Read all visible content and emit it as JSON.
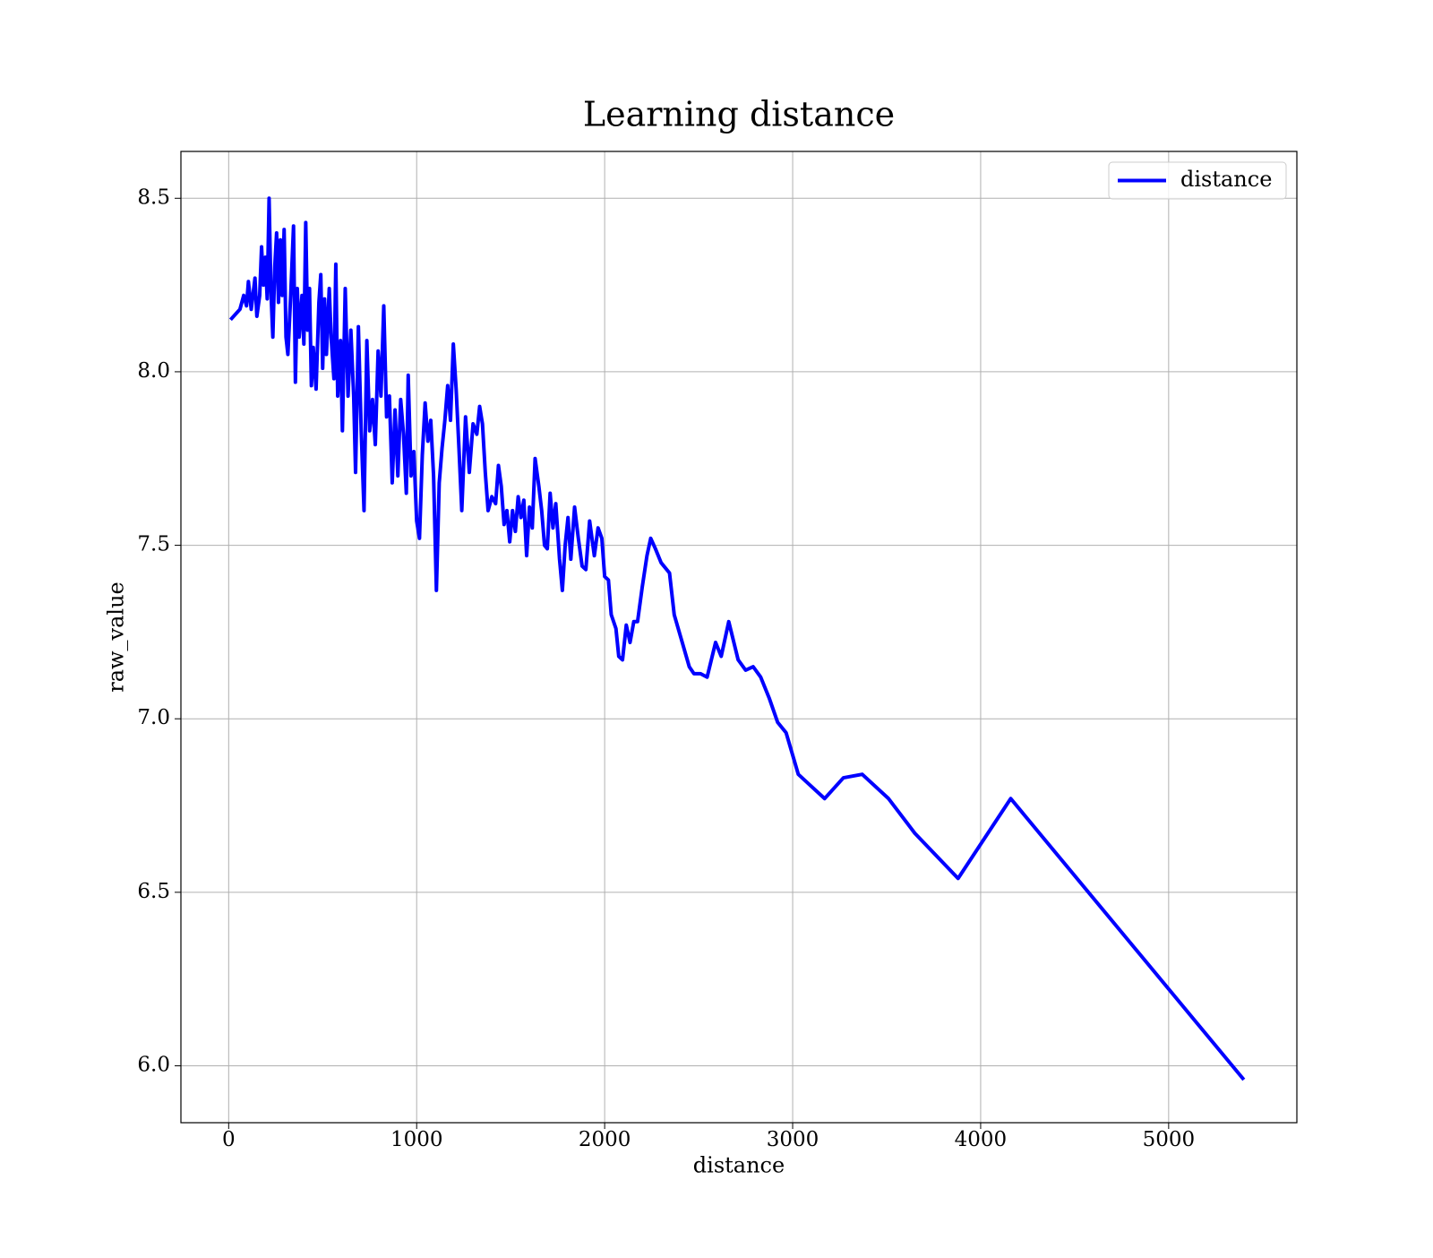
{
  "chart_data": {
    "type": "line",
    "title": "Learning distance",
    "xlabel": "distance",
    "ylabel": "raw_value",
    "x": [
      10,
      60,
      80,
      95,
      105,
      120,
      140,
      150,
      165,
      175,
      185,
      195,
      205,
      215,
      225,
      235,
      245,
      255,
      265,
      275,
      285,
      295,
      305,
      315,
      330,
      345,
      355,
      365,
      375,
      390,
      400,
      410,
      420,
      430,
      440,
      450,
      465,
      480,
      490,
      500,
      510,
      520,
      535,
      545,
      560,
      570,
      580,
      595,
      605,
      620,
      635,
      650,
      665,
      675,
      690,
      705,
      720,
      735,
      750,
      765,
      780,
      795,
      810,
      825,
      840,
      855,
      870,
      885,
      900,
      915,
      930,
      945,
      955,
      970,
      985,
      1000,
      1015,
      1030,
      1045,
      1060,
      1075,
      1090,
      1105,
      1120,
      1135,
      1150,
      1165,
      1180,
      1195,
      1210,
      1225,
      1240,
      1260,
      1280,
      1300,
      1320,
      1335,
      1350,
      1365,
      1380,
      1400,
      1420,
      1435,
      1450,
      1465,
      1480,
      1495,
      1510,
      1525,
      1540,
      1555,
      1570,
      1585,
      1600,
      1615,
      1630,
      1650,
      1665,
      1680,
      1695,
      1710,
      1725,
      1740,
      1760,
      1775,
      1790,
      1805,
      1820,
      1840,
      1860,
      1880,
      1900,
      1920,
      1945,
      1965,
      1985,
      2000,
      2020,
      2035,
      2060,
      2075,
      2095,
      2115,
      2135,
      2155,
      2175,
      2200,
      2225,
      2245,
      2270,
      2300,
      2345,
      2370,
      2450,
      2475,
      2510,
      2545,
      2590,
      2620,
      2660,
      2710,
      2750,
      2790,
      2830,
      2875,
      2920,
      2965,
      3030,
      3090,
      3170,
      3270,
      3370,
      3510,
      3650,
      3880,
      4160,
      5400
    ],
    "series": [
      {
        "name": "distance",
        "color": "#0000ff",
        "values": [
          8.15,
          8.18,
          8.22,
          8.19,
          8.26,
          8.18,
          8.27,
          8.16,
          8.22,
          8.36,
          8.25,
          8.33,
          8.21,
          8.5,
          8.23,
          8.1,
          8.3,
          8.4,
          8.2,
          8.38,
          8.22,
          8.41,
          8.1,
          8.05,
          8.22,
          8.42,
          7.97,
          8.24,
          8.1,
          8.22,
          8.08,
          8.43,
          8.12,
          8.24,
          7.96,
          8.07,
          7.95,
          8.2,
          8.28,
          8.01,
          8.21,
          8.05,
          8.24,
          8.1,
          7.98,
          8.31,
          7.93,
          8.09,
          7.83,
          8.24,
          7.93,
          8.12,
          7.93,
          7.71,
          8.13,
          7.83,
          7.6,
          8.09,
          7.83,
          7.92,
          7.79,
          8.06,
          7.93,
          8.19,
          7.87,
          7.93,
          7.68,
          7.89,
          7.7,
          7.92,
          7.82,
          7.65,
          7.99,
          7.7,
          7.77,
          7.57,
          7.52,
          7.76,
          7.91,
          7.8,
          7.86,
          7.7,
          7.37,
          7.68,
          7.78,
          7.86,
          7.96,
          7.86,
          8.08,
          7.95,
          7.78,
          7.6,
          7.87,
          7.71,
          7.85,
          7.82,
          7.9,
          7.85,
          7.71,
          7.6,
          7.64,
          7.62,
          7.73,
          7.67,
          7.56,
          7.6,
          7.51,
          7.6,
          7.54,
          7.64,
          7.58,
          7.63,
          7.47,
          7.61,
          7.55,
          7.75,
          7.67,
          7.6,
          7.5,
          7.49,
          7.65,
          7.55,
          7.62,
          7.46,
          7.37,
          7.5,
          7.58,
          7.46,
          7.61,
          7.52,
          7.44,
          7.43,
          7.57,
          7.47,
          7.55,
          7.52,
          7.41,
          7.4,
          7.3,
          7.26,
          7.18,
          7.17,
          7.27,
          7.22,
          7.28,
          7.28,
          7.38,
          7.47,
          7.52,
          7.49,
          7.45,
          7.42,
          7.3,
          7.15,
          7.13,
          7.13,
          7.12,
          7.22,
          7.18,
          7.28,
          7.17,
          7.14,
          7.15,
          7.12,
          7.06,
          6.99,
          6.96,
          6.84,
          6.81,
          6.77,
          6.83,
          6.84,
          6.77,
          6.67,
          6.54,
          6.77,
          5.96
        ]
      }
    ],
    "xlim": [
      -254,
      5682
    ],
    "ylim": [
      5.836,
      8.635
    ],
    "xticks": [
      0,
      1000,
      2000,
      3000,
      4000,
      5000
    ],
    "yticks": [
      {
        "value": 6,
        "label": "6.0"
      },
      6.5,
      {
        "value": 7,
        "label": "7.0"
      },
      7.5,
      {
        "value": 8,
        "label": "8.0"
      },
      8.5
    ],
    "grid": true,
    "legend": "upper right"
  }
}
